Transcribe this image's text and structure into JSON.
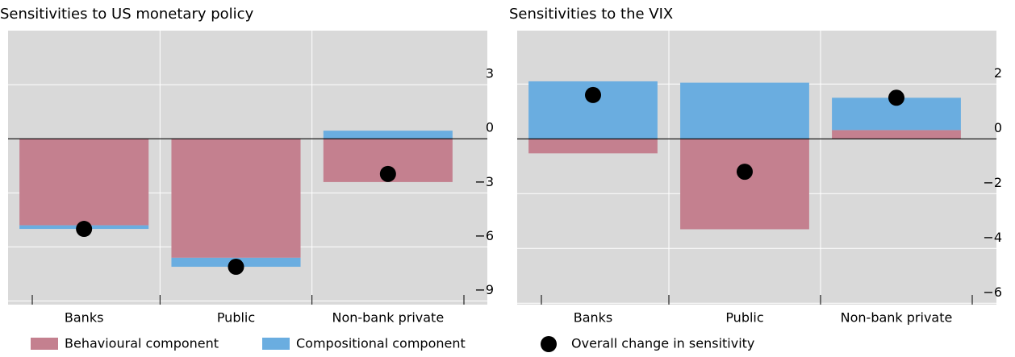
{
  "chart_data": [
    {
      "type": "bar",
      "title": "Sensitivities to US monetary policy",
      "categories": [
        "Banks",
        "Public",
        "Non-bank private"
      ],
      "series": [
        {
          "name": "Behavioural component",
          "type": "bar",
          "color": "#c4808f",
          "values": [
            -4.8,
            -6.6,
            -2.4
          ]
        },
        {
          "name": "Compositional component",
          "type": "bar",
          "color": "#6aade0",
          "values": [
            -0.2,
            -0.5,
            0.45
          ]
        },
        {
          "name": "Overall change in sensitivity",
          "type": "scatter",
          "color": "#000000",
          "values": [
            -5.0,
            -7.1,
            -1.95
          ]
        }
      ],
      "ylim": [
        -9.2,
        6
      ],
      "yticks": [
        3,
        0,
        {
          "value": -3,
          "label": "−3"
        },
        {
          "value": -6,
          "label": "−6"
        },
        {
          "value": -9,
          "label": "−9"
        }
      ],
      "grid": true
    },
    {
      "type": "bar",
      "title": "Sensitivities to the VIX",
      "categories": [
        "Banks",
        "Public",
        "Non-bank private"
      ],
      "series": [
        {
          "name": "Behavioural component",
          "type": "bar",
          "color": "#c4808f",
          "values": [
            -0.53,
            -3.3,
            0.32
          ]
        },
        {
          "name": "Compositional component",
          "type": "bar",
          "color": "#6aade0",
          "values": [
            2.1,
            2.05,
            1.18
          ]
        },
        {
          "name": "Overall change in sensitivity",
          "type": "scatter",
          "color": "#000000",
          "values": [
            1.6,
            -1.2,
            1.5
          ]
        }
      ],
      "ylim": [
        -6.05,
        3.95
      ],
      "yticks": [
        2,
        0,
        {
          "value": -2,
          "label": "−2"
        },
        {
          "value": -4,
          "label": "−4"
        },
        {
          "value": -6,
          "label": "−6"
        }
      ],
      "grid": true
    }
  ]
}
